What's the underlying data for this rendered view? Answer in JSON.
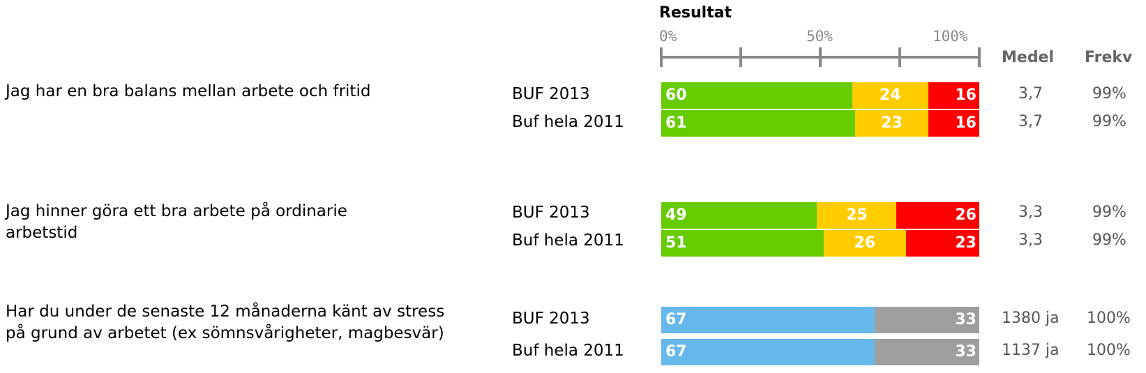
{
  "chart_data": {
    "type": "bar",
    "title": "Resultat",
    "x_ticks": [
      "0%",
      "50%",
      "100%"
    ],
    "xlim": [
      0,
      100
    ],
    "columns": {
      "medel": "Medel",
      "frekv": "Frekv"
    },
    "colors": {
      "positive": "#66cc00",
      "neutral": "#ffcc00",
      "negative": "#ff0000",
      "ja": "#66b8eb",
      "nej": "#9e9e9e"
    },
    "questions": [
      {
        "text": "Jag har en bra balans mellan arbete och fritid",
        "rows": [
          {
            "label": "BUF 2013",
            "values": [
              60,
              24,
              16
            ],
            "medel": "3,7",
            "frekv": "99%"
          },
          {
            "label": "Buf hela 2011",
            "values": [
              61,
              23,
              16
            ],
            "medel": "3,7",
            "frekv": "99%"
          }
        ]
      },
      {
        "text": "Jag hinner göra ett bra arbete på ordinarie arbetstid",
        "rows": [
          {
            "label": "BUF 2013",
            "values": [
              49,
              25,
              26
            ],
            "medel": "3,3",
            "frekv": "99%"
          },
          {
            "label": "Buf hela 2011",
            "values": [
              51,
              26,
              23
            ],
            "medel": "3,3",
            "frekv": "99%"
          }
        ]
      },
      {
        "text": "Har du under de senaste 12 månaderna känt av stress på grund av arbetet (ex sömnsvårigheter, magbesvär)",
        "rows": [
          {
            "label": "BUF 2013",
            "values": [
              67,
              33
            ],
            "medel": "1380 ja",
            "frekv": "100%"
          },
          {
            "label": "Buf hela 2011",
            "values": [
              67,
              33
            ],
            "medel": "1137 ja",
            "frekv": "100%"
          }
        ]
      }
    ]
  }
}
